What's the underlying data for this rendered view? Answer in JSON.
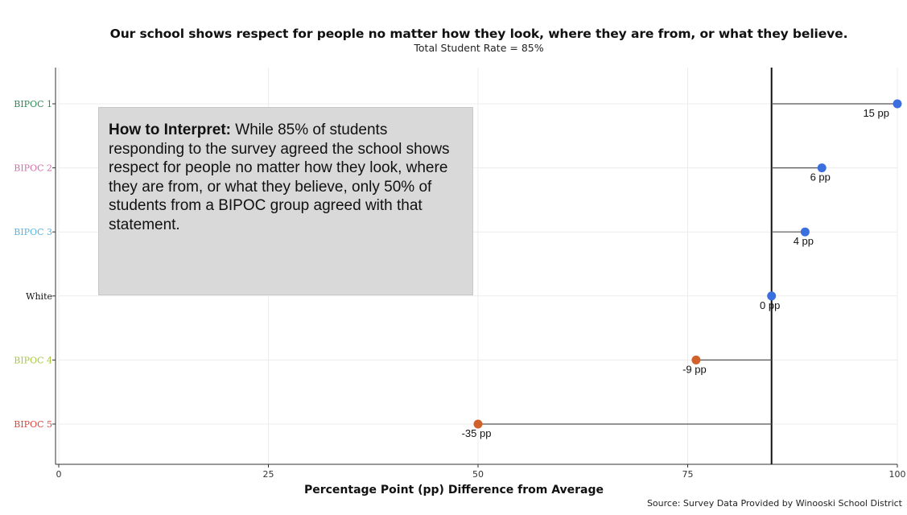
{
  "header": {
    "title": "Our school shows respect for people no matter how they look, where they are from, or what they believe.",
    "subtitle": "Total Student Rate = 85%"
  },
  "interpret": {
    "heading": "How to Interpret:",
    "body": "While 85% of students responding to the survey agreed the school shows respect for people no matter how they look, where they are from, or what they believe, only 50% of students from a BIPOC group agreed with that statement."
  },
  "footer": {
    "source": "Source: Survey Data Provided by Winooski School District"
  },
  "chart_data": {
    "type": "scatter",
    "title": "Our school shows respect for people no matter how they look, where they are from, or what they believe.",
    "subtitle": "Total Student Rate = 85%",
    "xlabel": "Percentage Point (pp) Difference from Average",
    "ylabel": "",
    "xlim": [
      0,
      100
    ],
    "xticks": [
      0,
      25,
      50,
      75,
      100
    ],
    "reference_x": 85,
    "grid": true,
    "points": [
      {
        "group": "BIPOC 1",
        "x": 100,
        "label": "15 pp",
        "label_color": "#2e8b57",
        "dot_color": "#3b6fe0"
      },
      {
        "group": "BIPOC 2",
        "x": 91,
        "label": "6 pp",
        "label_color": "#d36fa8",
        "dot_color": "#3b6fe0"
      },
      {
        "group": "BIPOC 3",
        "x": 89,
        "label": "4 pp",
        "label_color": "#5ab4e0",
        "dot_color": "#3b6fe0"
      },
      {
        "group": "White",
        "x": 85,
        "label": "0 pp",
        "label_color": "#111111",
        "dot_color": "#3b6fe0"
      },
      {
        "group": "BIPOC 4",
        "x": 76,
        "label": "-9 pp",
        "label_color": "#a8c83c",
        "dot_color": "#d2602a"
      },
      {
        "group": "BIPOC 5",
        "x": 50,
        "label": "-35 pp",
        "label_color": "#e0453a",
        "dot_color": "#d2602a"
      }
    ]
  }
}
